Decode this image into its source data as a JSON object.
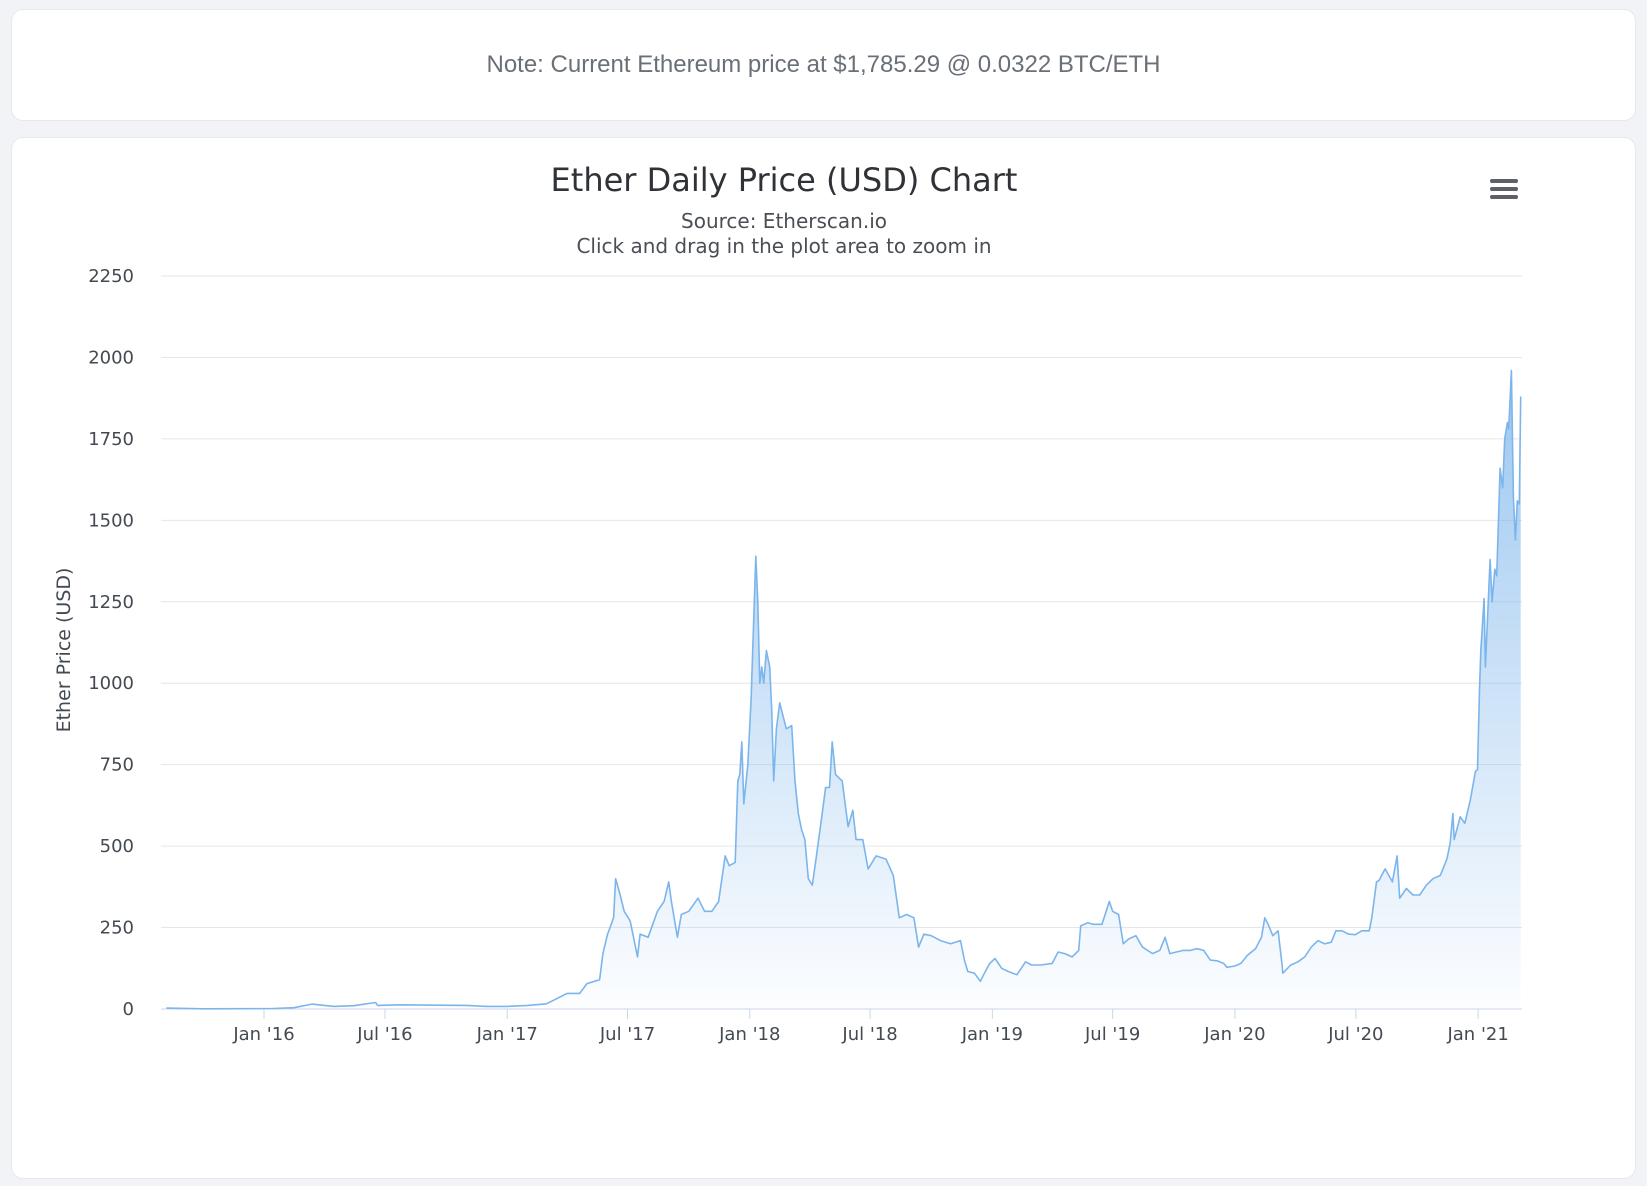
{
  "note": {
    "text": "Note: Current Ethereum price at $1,785.29 @ 0.0322 BTC/ETH"
  },
  "menu_icon": "hamburger-menu-icon",
  "colors": {
    "line": "#7cb5ec",
    "fill_top": "#7cb5ec",
    "grid": "#e6e6e6",
    "axis": "#ccd6eb"
  },
  "chart_data": {
    "type": "area",
    "title": "Ether Daily Price (USD) Chart",
    "subtitle": [
      "Source: Etherscan.io",
      "Click and drag in the plot area to zoom in"
    ],
    "xlabel": "",
    "ylabel": "Ether Price (USD)",
    "ylim": [
      0,
      2250
    ],
    "yticks": [
      0,
      250,
      500,
      750,
      1000,
      1250,
      1500,
      1750,
      2000,
      2250
    ],
    "xlim": [
      "2015-07-30",
      "2021-03-08"
    ],
    "xticks": [
      {
        "date": "2016-01-01",
        "label": "Jan '16"
      },
      {
        "date": "2016-07-01",
        "label": "Jul '16"
      },
      {
        "date": "2017-01-01",
        "label": "Jan '17"
      },
      {
        "date": "2017-07-01",
        "label": "Jul '17"
      },
      {
        "date": "2018-01-01",
        "label": "Jan '18"
      },
      {
        "date": "2018-07-01",
        "label": "Jul '18"
      },
      {
        "date": "2019-01-01",
        "label": "Jan '19"
      },
      {
        "date": "2019-07-01",
        "label": "Jul '19"
      },
      {
        "date": "2020-01-01",
        "label": "Jan '20"
      },
      {
        "date": "2020-07-01",
        "label": "Jul '20"
      },
      {
        "date": "2021-01-01",
        "label": "Jan '21"
      }
    ],
    "grid": true,
    "legend": false,
    "series": [
      {
        "points": [
          [
            "2015-08-07",
            2.8
          ],
          [
            "2015-10-01",
            0.7
          ],
          [
            "2015-12-01",
            0.9
          ],
          [
            "2016-01-15",
            1.5
          ],
          [
            "2016-02-15",
            4
          ],
          [
            "2016-03-13",
            15
          ],
          [
            "2016-04-15",
            8
          ],
          [
            "2016-05-15",
            10
          ],
          [
            "2016-06-17",
            20
          ],
          [
            "2016-06-20",
            11
          ],
          [
            "2016-07-25",
            13
          ],
          [
            "2016-09-01",
            12
          ],
          [
            "2016-11-01",
            11
          ],
          [
            "2016-12-01",
            8
          ],
          [
            "2017-01-01",
            8
          ],
          [
            "2017-02-01",
            11
          ],
          [
            "2017-03-01",
            16
          ],
          [
            "2017-03-15",
            30
          ],
          [
            "2017-04-01",
            48
          ],
          [
            "2017-04-20",
            48
          ],
          [
            "2017-05-01",
            78
          ],
          [
            "2017-05-20",
            90
          ],
          [
            "2017-05-25",
            170
          ],
          [
            "2017-06-01",
            230
          ],
          [
            "2017-06-10",
            280
          ],
          [
            "2017-06-13",
            400
          ],
          [
            "2017-06-20",
            350
          ],
          [
            "2017-06-26",
            300
          ],
          [
            "2017-07-05",
            270
          ],
          [
            "2017-07-16",
            160
          ],
          [
            "2017-07-20",
            230
          ],
          [
            "2017-08-01",
            220
          ],
          [
            "2017-08-15",
            300
          ],
          [
            "2017-08-25",
            330
          ],
          [
            "2017-09-01",
            390
          ],
          [
            "2017-09-05",
            330
          ],
          [
            "2017-09-14",
            220
          ],
          [
            "2017-09-20",
            290
          ],
          [
            "2017-10-01",
            300
          ],
          [
            "2017-10-15",
            340
          ],
          [
            "2017-10-25",
            300
          ],
          [
            "2017-11-05",
            300
          ],
          [
            "2017-11-15",
            330
          ],
          [
            "2017-11-25",
            470
          ],
          [
            "2017-12-01",
            440
          ],
          [
            "2017-12-10",
            450
          ],
          [
            "2017-12-14",
            700
          ],
          [
            "2017-12-17",
            720
          ],
          [
            "2017-12-20",
            820
          ],
          [
            "2017-12-23",
            630
          ],
          [
            "2017-12-29",
            750
          ],
          [
            "2018-01-03",
            950
          ],
          [
            "2018-01-10",
            1390
          ],
          [
            "2018-01-13",
            1250
          ],
          [
            "2018-01-16",
            1000
          ],
          [
            "2018-01-19",
            1050
          ],
          [
            "2018-01-22",
            1000
          ],
          [
            "2018-01-26",
            1100
          ],
          [
            "2018-01-31",
            1050
          ],
          [
            "2018-02-03",
            920
          ],
          [
            "2018-02-06",
            700
          ],
          [
            "2018-02-10",
            860
          ],
          [
            "2018-02-15",
            940
          ],
          [
            "2018-02-20",
            900
          ],
          [
            "2018-02-25",
            860
          ],
          [
            "2018-03-05",
            870
          ],
          [
            "2018-03-10",
            700
          ],
          [
            "2018-03-15",
            600
          ],
          [
            "2018-03-20",
            550
          ],
          [
            "2018-03-25",
            520
          ],
          [
            "2018-03-30",
            400
          ],
          [
            "2018-04-05",
            380
          ],
          [
            "2018-04-12",
            480
          ],
          [
            "2018-04-20",
            600
          ],
          [
            "2018-04-25",
            680
          ],
          [
            "2018-05-01",
            680
          ],
          [
            "2018-05-05",
            820
          ],
          [
            "2018-05-10",
            720
          ],
          [
            "2018-05-20",
            700
          ],
          [
            "2018-05-29",
            560
          ],
          [
            "2018-06-05",
            610
          ],
          [
            "2018-06-10",
            520
          ],
          [
            "2018-06-20",
            520
          ],
          [
            "2018-06-28",
            430
          ],
          [
            "2018-07-10",
            470
          ],
          [
            "2018-07-25",
            460
          ],
          [
            "2018-08-05",
            410
          ],
          [
            "2018-08-14",
            280
          ],
          [
            "2018-08-25",
            290
          ],
          [
            "2018-09-05",
            280
          ],
          [
            "2018-09-12",
            190
          ],
          [
            "2018-09-20",
            230
          ],
          [
            "2018-10-01",
            225
          ],
          [
            "2018-10-15",
            210
          ],
          [
            "2018-10-30",
            200
          ],
          [
            "2018-11-14",
            210
          ],
          [
            "2018-11-20",
            150
          ],
          [
            "2018-11-25",
            115
          ],
          [
            "2018-12-05",
            110
          ],
          [
            "2018-12-14",
            85
          ],
          [
            "2018-12-20",
            110
          ],
          [
            "2018-12-28",
            140
          ],
          [
            "2019-01-05",
            155
          ],
          [
            "2019-01-15",
            125
          ],
          [
            "2019-01-25",
            115
          ],
          [
            "2019-02-07",
            105
          ],
          [
            "2019-02-20",
            145
          ],
          [
            "2019-03-01",
            135
          ],
          [
            "2019-03-15",
            135
          ],
          [
            "2019-04-01",
            140
          ],
          [
            "2019-04-10",
            175
          ],
          [
            "2019-04-20",
            170
          ],
          [
            "2019-05-01",
            160
          ],
          [
            "2019-05-11",
            180
          ],
          [
            "2019-05-14",
            255
          ],
          [
            "2019-05-25",
            265
          ],
          [
            "2019-06-01",
            260
          ],
          [
            "2019-06-15",
            260
          ],
          [
            "2019-06-26",
            330
          ],
          [
            "2019-07-01",
            300
          ],
          [
            "2019-07-10",
            290
          ],
          [
            "2019-07-17",
            200
          ],
          [
            "2019-07-25",
            215
          ],
          [
            "2019-08-05",
            225
          ],
          [
            "2019-08-15",
            190
          ],
          [
            "2019-08-30",
            170
          ],
          [
            "2019-09-10",
            180
          ],
          [
            "2019-09-18",
            220
          ],
          [
            "2019-09-25",
            170
          ],
          [
            "2019-10-05",
            175
          ],
          [
            "2019-10-15",
            180
          ],
          [
            "2019-10-26",
            180
          ],
          [
            "2019-11-05",
            185
          ],
          [
            "2019-11-15",
            180
          ],
          [
            "2019-11-25",
            150
          ],
          [
            "2019-12-05",
            148
          ],
          [
            "2019-12-15",
            140
          ],
          [
            "2019-12-20",
            128
          ],
          [
            "2020-01-01",
            132
          ],
          [
            "2020-01-10",
            140
          ],
          [
            "2020-01-20",
            165
          ],
          [
            "2020-02-01",
            185
          ],
          [
            "2020-02-10",
            220
          ],
          [
            "2020-02-15",
            280
          ],
          [
            "2020-02-20",
            260
          ],
          [
            "2020-02-27",
            225
          ],
          [
            "2020-03-06",
            240
          ],
          [
            "2020-03-12",
            135
          ],
          [
            "2020-03-13",
            110
          ],
          [
            "2020-03-25",
            135
          ],
          [
            "2020-04-05",
            145
          ],
          [
            "2020-04-15",
            160
          ],
          [
            "2020-04-25",
            190
          ],
          [
            "2020-05-05",
            210
          ],
          [
            "2020-05-15",
            200
          ],
          [
            "2020-05-25",
            205
          ],
          [
            "2020-06-01",
            240
          ],
          [
            "2020-06-10",
            240
          ],
          [
            "2020-06-20",
            230
          ],
          [
            "2020-06-30",
            228
          ],
          [
            "2020-07-10",
            240
          ],
          [
            "2020-07-21",
            240
          ],
          [
            "2020-07-25",
            280
          ],
          [
            "2020-08-01",
            390
          ],
          [
            "2020-08-05",
            395
          ],
          [
            "2020-08-14",
            430
          ],
          [
            "2020-08-25",
            390
          ],
          [
            "2020-09-01",
            470
          ],
          [
            "2020-09-05",
            340
          ],
          [
            "2020-09-15",
            370
          ],
          [
            "2020-09-25",
            350
          ],
          [
            "2020-10-05",
            350
          ],
          [
            "2020-10-15",
            380
          ],
          [
            "2020-10-25",
            400
          ],
          [
            "2020-11-05",
            410
          ],
          [
            "2020-11-15",
            460
          ],
          [
            "2020-11-20",
            510
          ],
          [
            "2020-11-24",
            600
          ],
          [
            "2020-11-26",
            520
          ],
          [
            "2020-12-05",
            590
          ],
          [
            "2020-12-12",
            570
          ],
          [
            "2020-12-20",
            640
          ],
          [
            "2020-12-28",
            730
          ],
          [
            "2020-12-31",
            735
          ],
          [
            "2021-01-03",
            980
          ],
          [
            "2021-01-05",
            1100
          ],
          [
            "2021-01-10",
            1260
          ],
          [
            "2021-01-12",
            1050
          ],
          [
            "2021-01-19",
            1380
          ],
          [
            "2021-01-22",
            1250
          ],
          [
            "2021-01-26",
            1350
          ],
          [
            "2021-01-29",
            1330
          ],
          [
            "2021-02-03",
            1660
          ],
          [
            "2021-02-07",
            1600
          ],
          [
            "2021-02-10",
            1750
          ],
          [
            "2021-02-14",
            1800
          ],
          [
            "2021-02-16",
            1780
          ],
          [
            "2021-02-20",
            1960
          ],
          [
            "2021-02-23",
            1570
          ],
          [
            "2021-02-26",
            1440
          ],
          [
            "2021-03-01",
            1560
          ],
          [
            "2021-03-04",
            1550
          ],
          [
            "2021-03-06",
            1880
          ]
        ]
      }
    ]
  }
}
